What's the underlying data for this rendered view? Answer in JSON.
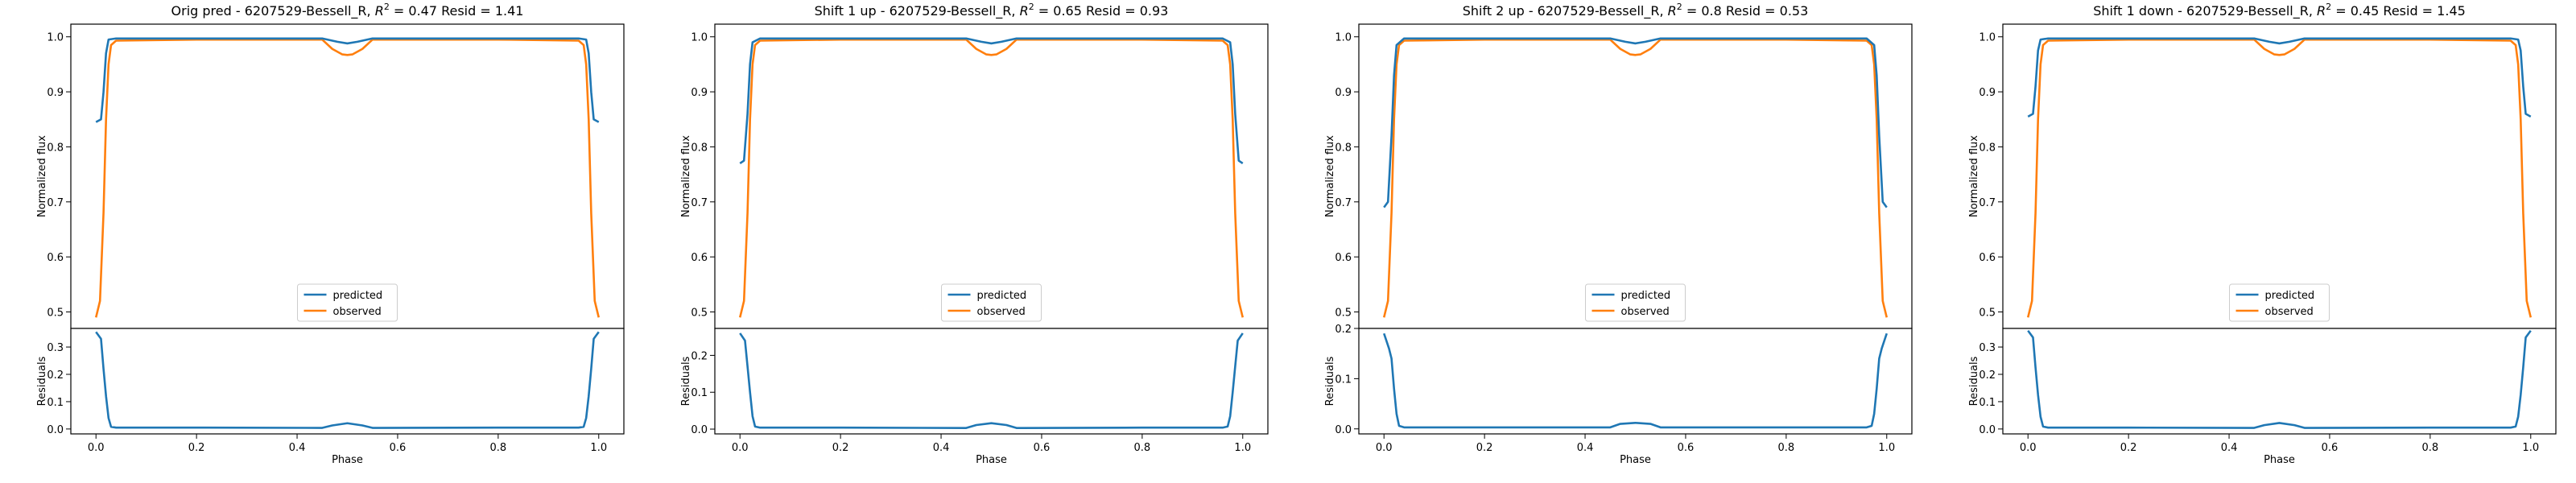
{
  "figure": {
    "panels": [
      {
        "title": "Orig pred - 6207529-Bessell_R, $R^2 = 0.47$ Resid = 1.41"
      },
      {
        "title": "Shift 1 up - 6207529-Bessell_R, $R^2 = 0.65$ Resid = 0.93"
      },
      {
        "title": "Shift 2 up - 6207529-Bessell_R, $R^2 = 0.8$ Resid = 0.53"
      },
      {
        "title": "Shift 1 down - 6207529-Bessell_R, $R^2 = 0.45$ Resid = 1.45"
      }
    ]
  },
  "chart_data": [
    {
      "type": "line",
      "title": "Orig pred - 6207529-Bessell_R, R^2 = 0.47 Resid = 1.41",
      "xlabel": "Phase",
      "ylabel": "Normalized flux",
      "ylabel_residuals": "Residuals",
      "xlim": [
        -0.05,
        1.05
      ],
      "ylim": [
        0.47,
        1.023
      ],
      "ylim_residuals": [
        -0.018,
        0.368
      ],
      "xticks": [
        "0.0",
        "0.2",
        "0.4",
        "0.6",
        "0.8",
        "1.0"
      ],
      "yticks": [
        "0.5",
        "0.6",
        "0.7",
        "0.8",
        "0.9",
        "1.0"
      ],
      "yticks_residuals": [
        "0.0",
        "0.1",
        "0.2",
        "0.3"
      ],
      "legend": {
        "position": "lower center",
        "entries": [
          "predicted",
          "observed"
        ]
      },
      "colors": {
        "predicted": "#1f77b4",
        "observed": "#ff7f0e",
        "residuals": "#1f77b4"
      },
      "series": [
        {
          "name": "predicted",
          "x": [
            0.0,
            0.01,
            0.015,
            0.02,
            0.025,
            0.04,
            0.2,
            0.45,
            0.48,
            0.5,
            0.52,
            0.55,
            0.8,
            0.96,
            0.975,
            0.98,
            0.985,
            0.99,
            1.0
          ],
          "y": [
            0.845,
            0.85,
            0.9,
            0.97,
            0.995,
            0.997,
            0.997,
            0.997,
            0.991,
            0.988,
            0.991,
            0.997,
            0.997,
            0.997,
            0.995,
            0.97,
            0.9,
            0.85,
            0.845
          ]
        },
        {
          "name": "observed",
          "x": [
            0.0,
            0.008,
            0.015,
            0.02,
            0.025,
            0.03,
            0.04,
            0.2,
            0.45,
            0.47,
            0.49,
            0.5,
            0.51,
            0.53,
            0.55,
            0.8,
            0.96,
            0.97,
            0.975,
            0.98,
            0.985,
            0.992,
            1.0
          ],
          "y": [
            0.49,
            0.52,
            0.68,
            0.85,
            0.95,
            0.985,
            0.993,
            0.995,
            0.995,
            0.978,
            0.968,
            0.967,
            0.968,
            0.978,
            0.995,
            0.995,
            0.993,
            0.985,
            0.95,
            0.85,
            0.68,
            0.52,
            0.49
          ]
        },
        {
          "name": "residuals",
          "x": [
            0.0,
            0.01,
            0.015,
            0.02,
            0.025,
            0.03,
            0.04,
            0.2,
            0.45,
            0.47,
            0.5,
            0.53,
            0.55,
            0.8,
            0.96,
            0.97,
            0.975,
            0.98,
            0.985,
            0.99,
            1.0
          ],
          "y": [
            0.355,
            0.33,
            0.22,
            0.12,
            0.04,
            0.008,
            0.005,
            0.005,
            0.004,
            0.013,
            0.021,
            0.013,
            0.004,
            0.005,
            0.005,
            0.008,
            0.04,
            0.12,
            0.22,
            0.33,
            0.355
          ]
        }
      ]
    },
    {
      "type": "line",
      "title": "Shift 1 up - 6207529-Bessell_R, R^2 = 0.65 Resid = 0.93",
      "xlabel": "Phase",
      "ylabel": "Normalized flux",
      "ylabel_residuals": "Residuals",
      "xlim": [
        -0.05,
        1.05
      ],
      "ylim": [
        0.47,
        1.023
      ],
      "ylim_residuals": [
        -0.013,
        0.273
      ],
      "xticks": [
        "0.0",
        "0.2",
        "0.4",
        "0.6",
        "0.8",
        "1.0"
      ],
      "yticks": [
        "0.5",
        "0.6",
        "0.7",
        "0.8",
        "0.9",
        "1.0"
      ],
      "yticks_residuals": [
        "0.0",
        "0.1",
        "0.2"
      ],
      "legend": {
        "position": "lower center",
        "entries": [
          "predicted",
          "observed"
        ]
      },
      "colors": {
        "predicted": "#1f77b4",
        "observed": "#ff7f0e",
        "residuals": "#1f77b4"
      },
      "series": [
        {
          "name": "predicted",
          "x": [
            0.0,
            0.008,
            0.015,
            0.02,
            0.025,
            0.04,
            0.2,
            0.45,
            0.48,
            0.5,
            0.52,
            0.55,
            0.8,
            0.96,
            0.975,
            0.98,
            0.985,
            0.992,
            1.0
          ],
          "y": [
            0.77,
            0.775,
            0.86,
            0.95,
            0.99,
            0.997,
            0.997,
            0.997,
            0.991,
            0.988,
            0.991,
            0.997,
            0.997,
            0.997,
            0.99,
            0.95,
            0.86,
            0.775,
            0.77
          ]
        },
        {
          "name": "observed",
          "x": [
            0.0,
            0.008,
            0.015,
            0.02,
            0.025,
            0.03,
            0.04,
            0.2,
            0.45,
            0.47,
            0.49,
            0.5,
            0.51,
            0.53,
            0.55,
            0.8,
            0.96,
            0.97,
            0.975,
            0.98,
            0.985,
            0.992,
            1.0
          ],
          "y": [
            0.49,
            0.52,
            0.68,
            0.85,
            0.95,
            0.985,
            0.993,
            0.995,
            0.995,
            0.978,
            0.968,
            0.967,
            0.968,
            0.978,
            0.995,
            0.995,
            0.993,
            0.985,
            0.95,
            0.85,
            0.68,
            0.52,
            0.49
          ]
        },
        {
          "name": "residuals",
          "x": [
            0.0,
            0.01,
            0.015,
            0.02,
            0.025,
            0.03,
            0.04,
            0.2,
            0.45,
            0.47,
            0.5,
            0.53,
            0.55,
            0.8,
            0.96,
            0.97,
            0.975,
            0.98,
            0.985,
            0.99,
            1.0
          ],
          "y": [
            0.26,
            0.24,
            0.17,
            0.1,
            0.035,
            0.007,
            0.004,
            0.004,
            0.003,
            0.011,
            0.016,
            0.011,
            0.003,
            0.004,
            0.004,
            0.007,
            0.035,
            0.1,
            0.17,
            0.24,
            0.26
          ]
        }
      ]
    },
    {
      "type": "line",
      "title": "Shift 2 up - 6207529-Bessell_R, R^2 = 0.8 Resid = 0.53",
      "xlabel": "Phase",
      "ylabel": "Normalized flux",
      "ylabel_residuals": "Residuals",
      "xlim": [
        -0.05,
        1.05
      ],
      "ylim": [
        0.47,
        1.023
      ],
      "ylim_residuals": [
        -0.01,
        0.2
      ],
      "xticks": [
        "0.0",
        "0.2",
        "0.4",
        "0.6",
        "0.8",
        "1.0"
      ],
      "yticks": [
        "0.5",
        "0.6",
        "0.7",
        "0.8",
        "0.9",
        "1.0"
      ],
      "yticks_residuals": [
        "0.0",
        "0.1",
        "0.2"
      ],
      "legend": {
        "position": "lower center",
        "entries": [
          "predicted",
          "observed"
        ]
      },
      "colors": {
        "predicted": "#1f77b4",
        "observed": "#ff7f0e",
        "residuals": "#1f77b4"
      },
      "series": [
        {
          "name": "predicted",
          "x": [
            0.0,
            0.008,
            0.015,
            0.02,
            0.025,
            0.04,
            0.2,
            0.45,
            0.48,
            0.5,
            0.52,
            0.55,
            0.8,
            0.96,
            0.975,
            0.98,
            0.985,
            0.992,
            1.0
          ],
          "y": [
            0.69,
            0.7,
            0.82,
            0.93,
            0.985,
            0.997,
            0.997,
            0.997,
            0.991,
            0.988,
            0.991,
            0.997,
            0.997,
            0.997,
            0.985,
            0.93,
            0.82,
            0.7,
            0.69
          ]
        },
        {
          "name": "observed",
          "x": [
            0.0,
            0.008,
            0.015,
            0.02,
            0.025,
            0.03,
            0.04,
            0.2,
            0.45,
            0.47,
            0.49,
            0.5,
            0.51,
            0.53,
            0.55,
            0.8,
            0.96,
            0.97,
            0.975,
            0.98,
            0.985,
            0.992,
            1.0
          ],
          "y": [
            0.49,
            0.52,
            0.68,
            0.85,
            0.95,
            0.985,
            0.993,
            0.995,
            0.995,
            0.978,
            0.968,
            0.967,
            0.968,
            0.978,
            0.995,
            0.995,
            0.993,
            0.985,
            0.95,
            0.85,
            0.68,
            0.52,
            0.49
          ]
        },
        {
          "name": "residuals",
          "x": [
            0.0,
            0.01,
            0.015,
            0.02,
            0.025,
            0.03,
            0.04,
            0.2,
            0.45,
            0.47,
            0.5,
            0.53,
            0.55,
            0.8,
            0.96,
            0.97,
            0.975,
            0.98,
            0.985,
            0.99,
            1.0
          ],
          "y": [
            0.19,
            0.16,
            0.14,
            0.08,
            0.03,
            0.006,
            0.003,
            0.003,
            0.003,
            0.01,
            0.012,
            0.01,
            0.003,
            0.003,
            0.003,
            0.006,
            0.03,
            0.08,
            0.14,
            0.16,
            0.19
          ]
        }
      ]
    },
    {
      "type": "line",
      "title": "Shift 1 down - 6207529-Bessell_R, R^2 = 0.45 Resid = 1.45",
      "xlabel": "Phase",
      "ylabel": "Normalized flux",
      "ylabel_residuals": "Residuals",
      "xlim": [
        -0.05,
        1.05
      ],
      "ylim": [
        0.47,
        1.023
      ],
      "ylim_residuals": [
        -0.018,
        0.368
      ],
      "xticks": [
        "0.0",
        "0.2",
        "0.4",
        "0.6",
        "0.8",
        "1.0"
      ],
      "yticks": [
        "0.5",
        "0.6",
        "0.7",
        "0.8",
        "0.9",
        "1.0"
      ],
      "yticks_residuals": [
        "0.0",
        "0.1",
        "0.2",
        "0.3"
      ],
      "legend": {
        "position": "lower center",
        "entries": [
          "predicted",
          "observed"
        ]
      },
      "colors": {
        "predicted": "#1f77b4",
        "observed": "#ff7f0e",
        "residuals": "#1f77b4"
      },
      "series": [
        {
          "name": "predicted",
          "x": [
            0.0,
            0.01,
            0.015,
            0.02,
            0.025,
            0.04,
            0.2,
            0.45,
            0.48,
            0.5,
            0.52,
            0.55,
            0.8,
            0.96,
            0.975,
            0.98,
            0.985,
            0.99,
            1.0
          ],
          "y": [
            0.855,
            0.86,
            0.91,
            0.975,
            0.995,
            0.997,
            0.997,
            0.997,
            0.991,
            0.988,
            0.991,
            0.997,
            0.997,
            0.997,
            0.995,
            0.975,
            0.91,
            0.86,
            0.855
          ]
        },
        {
          "name": "observed",
          "x": [
            0.0,
            0.008,
            0.015,
            0.02,
            0.025,
            0.03,
            0.04,
            0.2,
            0.45,
            0.47,
            0.49,
            0.5,
            0.51,
            0.53,
            0.55,
            0.8,
            0.96,
            0.97,
            0.975,
            0.98,
            0.985,
            0.992,
            1.0
          ],
          "y": [
            0.49,
            0.52,
            0.68,
            0.85,
            0.95,
            0.985,
            0.993,
            0.995,
            0.995,
            0.978,
            0.968,
            0.967,
            0.968,
            0.978,
            0.995,
            0.995,
            0.993,
            0.985,
            0.95,
            0.85,
            0.68,
            0.52,
            0.49
          ]
        },
        {
          "name": "residuals",
          "x": [
            0.0,
            0.01,
            0.015,
            0.02,
            0.025,
            0.03,
            0.04,
            0.2,
            0.45,
            0.47,
            0.5,
            0.53,
            0.55,
            0.8,
            0.96,
            0.97,
            0.975,
            0.98,
            0.985,
            0.99,
            1.0
          ],
          "y": [
            0.36,
            0.335,
            0.225,
            0.125,
            0.045,
            0.009,
            0.005,
            0.005,
            0.004,
            0.014,
            0.022,
            0.014,
            0.004,
            0.005,
            0.005,
            0.009,
            0.045,
            0.125,
            0.225,
            0.335,
            0.36
          ]
        }
      ]
    }
  ]
}
